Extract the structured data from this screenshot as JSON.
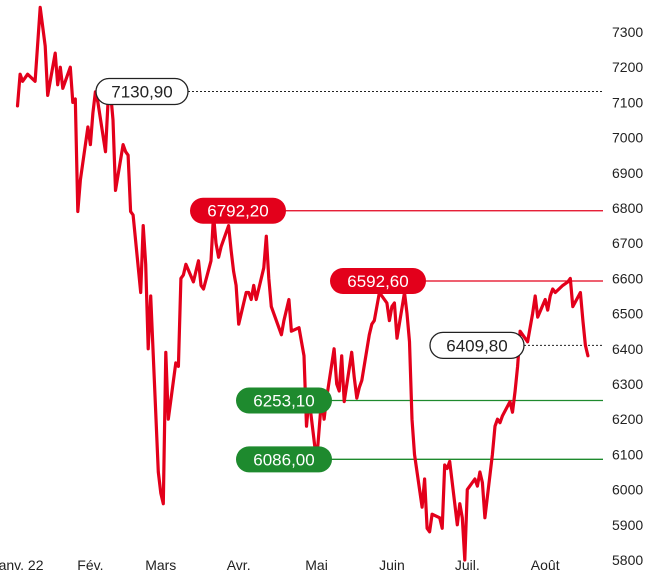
{
  "chart_data": {
    "type": "line",
    "title": "",
    "xlabel": "",
    "ylabel": "",
    "ylim": [
      5800,
      7350
    ],
    "y_ticks": [
      5800,
      5900,
      6000,
      6100,
      6200,
      6300,
      6400,
      6500,
      6600,
      6700,
      6800,
      6900,
      7000,
      7100,
      7200,
      7300
    ],
    "x_ticks": [
      {
        "label": "Janv. 22",
        "date": "2022-01-03"
      },
      {
        "label": "Fév.",
        "date": "2022-02-01"
      },
      {
        "label": "Mars",
        "date": "2022-03-01"
      },
      {
        "label": "Avr.",
        "date": "2022-04-01"
      },
      {
        "label": "Mai",
        "date": "2022-05-02"
      },
      {
        "label": "Juin",
        "date": "2022-06-01"
      },
      {
        "label": "Juil.",
        "date": "2022-07-01"
      },
      {
        "label": "Août",
        "date": "2022-08-01"
      }
    ],
    "x_range": [
      "2021-12-31",
      "2022-08-24"
    ],
    "series": [
      {
        "color": "#e3001b",
        "points": [
          [
            "2022-01-03",
            7090
          ],
          [
            "2022-01-04",
            7180
          ],
          [
            "2022-01-05",
            7160
          ],
          [
            "2022-01-06",
            7170
          ],
          [
            "2022-01-07",
            7180
          ],
          [
            "2022-01-10",
            7160
          ],
          [
            "2022-01-12",
            7370
          ],
          [
            "2022-01-14",
            7260
          ],
          [
            "2022-01-15",
            7120
          ],
          [
            "2022-01-17",
            7200
          ],
          [
            "2022-01-18",
            7240
          ],
          [
            "2022-01-19",
            7150
          ],
          [
            "2022-01-20",
            7200
          ],
          [
            "2022-01-21",
            7140
          ],
          [
            "2022-01-24",
            7200
          ],
          [
            "2022-01-25",
            7100
          ],
          [
            "2022-01-26",
            7110
          ],
          [
            "2022-01-27",
            6790
          ],
          [
            "2022-01-28",
            6880
          ],
          [
            "2022-01-31",
            7030
          ],
          [
            "2022-02-01",
            6980
          ],
          [
            "2022-02-02",
            7070
          ],
          [
            "2022-02-03",
            7130
          ],
          [
            "2022-02-04",
            7100
          ],
          [
            "2022-02-07",
            6960
          ],
          [
            "2022-02-08",
            7100
          ],
          [
            "2022-02-09",
            7130
          ],
          [
            "2022-02-10",
            7050
          ],
          [
            "2022-02-11",
            6850
          ],
          [
            "2022-02-14",
            6980
          ],
          [
            "2022-02-15",
            6960
          ],
          [
            "2022-02-16",
            6950
          ],
          [
            "2022-02-17",
            6790
          ],
          [
            "2022-02-18",
            6780
          ],
          [
            "2022-02-21",
            6560
          ],
          [
            "2022-02-22",
            6750
          ],
          [
            "2022-02-23",
            6640
          ],
          [
            "2022-02-24",
            6400
          ],
          [
            "2022-02-25",
            6550
          ],
          [
            "2022-02-28",
            6050
          ],
          [
            "2022-03-01",
            5990
          ],
          [
            "2022-03-02",
            5960
          ],
          [
            "2022-03-03",
            6390
          ],
          [
            "2022-03-04",
            6200
          ],
          [
            "2022-03-07",
            6360
          ],
          [
            "2022-03-08",
            6350
          ],
          [
            "2022-03-09",
            6600
          ],
          [
            "2022-03-10",
            6610
          ],
          [
            "2022-03-11",
            6640
          ],
          [
            "2022-03-14",
            6590
          ],
          [
            "2022-03-15",
            6620
          ],
          [
            "2022-03-16",
            6650
          ],
          [
            "2022-03-17",
            6580
          ],
          [
            "2022-03-18",
            6570
          ],
          [
            "2022-03-21",
            6650
          ],
          [
            "2022-03-22",
            6780
          ],
          [
            "2022-03-23",
            6700
          ],
          [
            "2022-03-24",
            6660
          ],
          [
            "2022-03-25",
            6690
          ],
          [
            "2022-03-28",
            6750
          ],
          [
            "2022-03-29",
            6680
          ],
          [
            "2022-03-30",
            6620
          ],
          [
            "2022-03-31",
            6580
          ],
          [
            "2022-04-01",
            6470
          ],
          [
            "2022-04-04",
            6560
          ],
          [
            "2022-04-05",
            6560
          ],
          [
            "2022-04-06",
            6540
          ],
          [
            "2022-04-07",
            6580
          ],
          [
            "2022-04-08",
            6540
          ],
          [
            "2022-04-11",
            6630
          ],
          [
            "2022-04-12",
            6720
          ],
          [
            "2022-04-13",
            6600
          ],
          [
            "2022-04-14",
            6520
          ],
          [
            "2022-04-15",
            6500
          ],
          [
            "2022-04-18",
            6440
          ],
          [
            "2022-04-19",
            6480
          ],
          [
            "2022-04-20",
            6510
          ],
          [
            "2022-04-21",
            6540
          ],
          [
            "2022-04-22",
            6450
          ],
          [
            "2022-04-25",
            6460
          ],
          [
            "2022-04-26",
            6420
          ],
          [
            "2022-04-27",
            6380
          ],
          [
            "2022-04-28",
            6180
          ],
          [
            "2022-04-29",
            6260
          ],
          [
            "2022-05-02",
            6080
          ],
          [
            "2022-05-04",
            6260
          ],
          [
            "2022-05-05",
            6200
          ],
          [
            "2022-05-06",
            6260
          ],
          [
            "2022-05-09",
            6400
          ],
          [
            "2022-05-10",
            6300
          ],
          [
            "2022-05-11",
            6280
          ],
          [
            "2022-05-12",
            6380
          ],
          [
            "2022-05-13",
            6250
          ],
          [
            "2022-05-16",
            6390
          ],
          [
            "2022-05-17",
            6320
          ],
          [
            "2022-05-18",
            6260
          ],
          [
            "2022-05-19",
            6290
          ],
          [
            "2022-05-20",
            6310
          ],
          [
            "2022-05-23",
            6440
          ],
          [
            "2022-05-24",
            6470
          ],
          [
            "2022-05-25",
            6480
          ],
          [
            "2022-05-27",
            6560
          ],
          [
            "2022-05-30",
            6530
          ],
          [
            "2022-05-31",
            6480
          ],
          [
            "2022-06-01",
            6520
          ],
          [
            "2022-06-02",
            6530
          ],
          [
            "2022-06-03",
            6430
          ],
          [
            "2022-06-06",
            6560
          ],
          [
            "2022-06-07",
            6500
          ],
          [
            "2022-06-08",
            6420
          ],
          [
            "2022-06-09",
            6200
          ],
          [
            "2022-06-10",
            6100
          ],
          [
            "2022-06-13",
            5950
          ],
          [
            "2022-06-14",
            6030
          ],
          [
            "2022-06-15",
            5890
          ],
          [
            "2022-06-16",
            5880
          ],
          [
            "2022-06-17",
            5930
          ],
          [
            "2022-06-20",
            5920
          ],
          [
            "2022-06-21",
            5890
          ],
          [
            "2022-06-22",
            6070
          ],
          [
            "2022-06-23",
            6060
          ],
          [
            "2022-06-24",
            6080
          ],
          [
            "2022-06-27",
            5900
          ],
          [
            "2022-06-28",
            5960
          ],
          [
            "2022-06-29",
            5920
          ],
          [
            "2022-06-30",
            5800
          ],
          [
            "2022-07-01",
            6000
          ],
          [
            "2022-07-04",
            6030
          ],
          [
            "2022-07-05",
            6010
          ],
          [
            "2022-07-06",
            6050
          ],
          [
            "2022-07-07",
            6020
          ],
          [
            "2022-07-08",
            5920
          ],
          [
            "2022-07-11",
            6100
          ],
          [
            "2022-07-12",
            6180
          ],
          [
            "2022-07-13",
            6200
          ],
          [
            "2022-07-14",
            6190
          ],
          [
            "2022-07-15",
            6210
          ],
          [
            "2022-07-18",
            6250
          ],
          [
            "2022-07-19",
            6220
          ],
          [
            "2022-07-20",
            6280
          ],
          [
            "2022-07-21",
            6350
          ],
          [
            "2022-07-22",
            6450
          ],
          [
            "2022-07-25",
            6420
          ],
          [
            "2022-07-26",
            6460
          ],
          [
            "2022-07-27",
            6500
          ],
          [
            "2022-07-28",
            6550
          ],
          [
            "2022-07-29",
            6490
          ],
          [
            "2022-08-01",
            6540
          ],
          [
            "2022-08-02",
            6510
          ],
          [
            "2022-08-03",
            6550
          ],
          [
            "2022-08-04",
            6570
          ],
          [
            "2022-08-05",
            6560
          ],
          [
            "2022-08-08",
            6580
          ],
          [
            "2022-08-10",
            6590
          ],
          [
            "2022-08-11",
            6600
          ],
          [
            "2022-08-12",
            6520
          ],
          [
            "2022-08-15",
            6560
          ],
          [
            "2022-08-16",
            6480
          ],
          [
            "2022-08-17",
            6410
          ],
          [
            "2022-08-18",
            6380
          ]
        ]
      }
    ],
    "annotations": [
      {
        "text": "7130,90",
        "value": 7130.9,
        "style": "outline",
        "line": "dotted",
        "color": "#222222"
      },
      {
        "text": "6792,20",
        "value": 6792.2,
        "style": "filled",
        "line": "solid",
        "color": "#e3001b"
      },
      {
        "text": "6592,60",
        "value": 6592.6,
        "style": "filled",
        "line": "solid",
        "color": "#e3001b"
      },
      {
        "text": "6409,80",
        "value": 6409.8,
        "style": "outline",
        "line": "dotted",
        "color": "#222222"
      },
      {
        "text": "6253,10",
        "value": 6253.1,
        "style": "filled",
        "line": "solid",
        "color": "#1e8a2e"
      },
      {
        "text": "6086,00",
        "value": 6086.0,
        "style": "filled",
        "line": "solid",
        "color": "#1e8a2e"
      }
    ],
    "grid": false,
    "y_axis_side": "right"
  }
}
